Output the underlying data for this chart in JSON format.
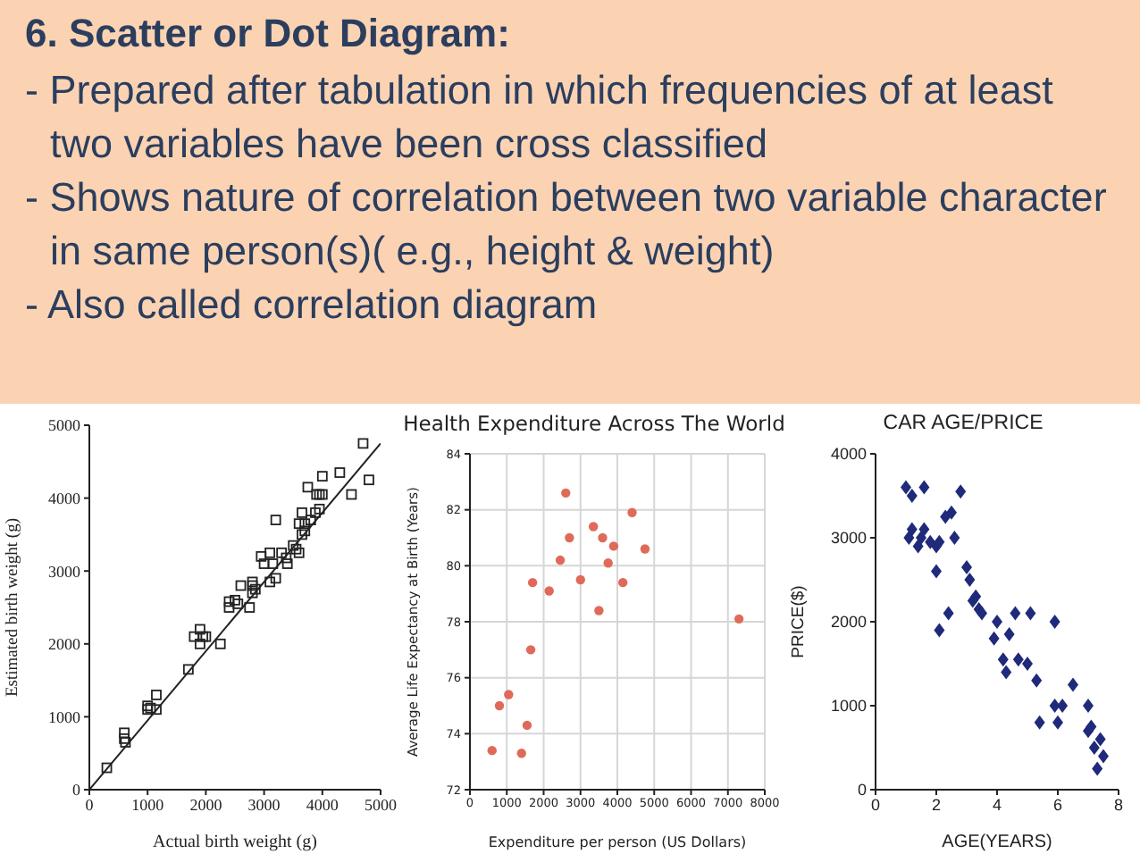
{
  "chart_data": [
    {
      "type": "other",
      "title": "6. Scatter or Dot Diagram:",
      "annotations": [
        "- Prepared after tabulation in which frequencies of at least two variables have been cross classified",
        "- Shows nature of correlation between two variable character in same person(s)( e.g., height & weight)",
        "- Also called correlation diagram"
      ]
    },
    {
      "type": "scatter",
      "xlabel": "Actual birth weight (g)",
      "ylabel": "Estimated birth weight (g)",
      "xlim": [
        0,
        5000
      ],
      "ylim": [
        0,
        5000
      ],
      "xticks": [
        0,
        1000,
        2000,
        3000,
        4000,
        5000
      ],
      "yticks": [
        0,
        1000,
        2000,
        3000,
        4000,
        5000
      ],
      "marker": "square",
      "series": [
        {
          "type": "scatter",
          "color": "#222222",
          "x": [
            300,
            600,
            600,
            620,
            1000,
            1000,
            1050,
            1150,
            1150,
            1700,
            1800,
            1900,
            1900,
            1950,
            2000,
            2250,
            2400,
            2400,
            2500,
            2550,
            2600,
            2750,
            2800,
            2800,
            2850,
            2800,
            2950,
            3000,
            3100,
            3100,
            3150,
            3200,
            3200,
            3300,
            3400,
            3380,
            3500,
            3550,
            3600,
            3600,
            3650,
            3650,
            3700,
            3700,
            3750,
            3800,
            3880,
            3900,
            3950,
            3950,
            4000,
            4000,
            4300,
            4500,
            4700,
            4800
          ],
          "values": [
            300,
            700,
            780,
            650,
            1100,
            1150,
            1120,
            1100,
            1300,
            1650,
            2100,
            2200,
            2000,
            2100,
            2100,
            2000,
            2500,
            2580,
            2600,
            2550,
            2800,
            2500,
            2700,
            2850,
            2750,
            2800,
            3200,
            3100,
            2850,
            3250,
            3100,
            2900,
            3700,
            3250,
            3100,
            3180,
            3350,
            3300,
            3250,
            3650,
            3500,
            3800,
            3550,
            3650,
            4150,
            3700,
            3800,
            4050,
            3850,
            4050,
            4300,
            4050,
            4350,
            4050,
            4750,
            4250
          ]
        },
        {
          "type": "line",
          "color": "#222222",
          "marker": "none",
          "x": [
            0,
            5000
          ],
          "values": [
            0,
            4750
          ]
        }
      ]
    },
    {
      "type": "scatter",
      "title": "Health Expenditure Across The World",
      "xlabel": "Expenditure per person (US Dollars)",
      "ylabel": "Average Life Expectancy at Birth (Years)",
      "xlim": [
        0,
        8000
      ],
      "ylim": [
        72,
        84
      ],
      "xticks": [
        0,
        1000,
        2000,
        3000,
        4000,
        5000,
        6000,
        7000,
        8000
      ],
      "yticks": [
        72,
        74,
        76,
        78,
        80,
        82,
        84
      ],
      "grid": true,
      "marker": "circle",
      "series": [
        {
          "type": "scatter",
          "color": "#e06a5a",
          "x": [
            600,
            800,
            1050,
            1400,
            1550,
            1650,
            1700,
            2150,
            2450,
            2600,
            2700,
            3000,
            3350,
            3500,
            3600,
            3750,
            3900,
            4150,
            4400,
            4750,
            7300
          ],
          "values": [
            73.4,
            75,
            75.4,
            73.3,
            74.3,
            77,
            79.4,
            79.1,
            80.2,
            82.6,
            81,
            79.5,
            81.4,
            78.4,
            81,
            80.1,
            80.7,
            79.4,
            81.9,
            80.6,
            78.1
          ]
        }
      ]
    },
    {
      "type": "scatter",
      "title": "CAR AGE/PRICE",
      "xlabel": "AGE(YEARS)",
      "ylabel": "PRICE($)",
      "xlim": [
        0,
        8
      ],
      "ylim": [
        0,
        4000
      ],
      "xticks": [
        0,
        2,
        4,
        6,
        8
      ],
      "yticks": [
        0,
        1000,
        2000,
        3000,
        4000
      ],
      "marker": "diamond",
      "series": [
        {
          "type": "scatter",
          "color": "#1f2a7a",
          "x": [
            1,
            1.1,
            1.2,
            1.2,
            1.4,
            1.5,
            1.6,
            1.6,
            1.8,
            2,
            2,
            2.1,
            2.1,
            2.3,
            2.4,
            2.5,
            2.6,
            2.8,
            3,
            3.1,
            3.2,
            3.3,
            3.4,
            3.5,
            3.9,
            4,
            4.2,
            4.3,
            4.4,
            4.6,
            4.7,
            5,
            5.1,
            5.3,
            5.4,
            5.9,
            6,
            5.9,
            6.15,
            6.5,
            7,
            7,
            7.1,
            7.2,
            7.3,
            7.4,
            7.5
          ],
          "values": [
            3600,
            3000,
            3500,
            3100,
            2900,
            3000,
            3600,
            3100,
            2950,
            2600,
            2900,
            1900,
            2950,
            3250,
            2100,
            3300,
            3000,
            3550,
            2650,
            2500,
            2250,
            2300,
            2150,
            2100,
            1800,
            2000,
            1550,
            1400,
            1850,
            2100,
            1550,
            1500,
            2100,
            1300,
            800,
            2000,
            800,
            1000,
            1000,
            1250,
            1000,
            700,
            750,
            500,
            250,
            600,
            400
          ]
        }
      ]
    }
  ]
}
